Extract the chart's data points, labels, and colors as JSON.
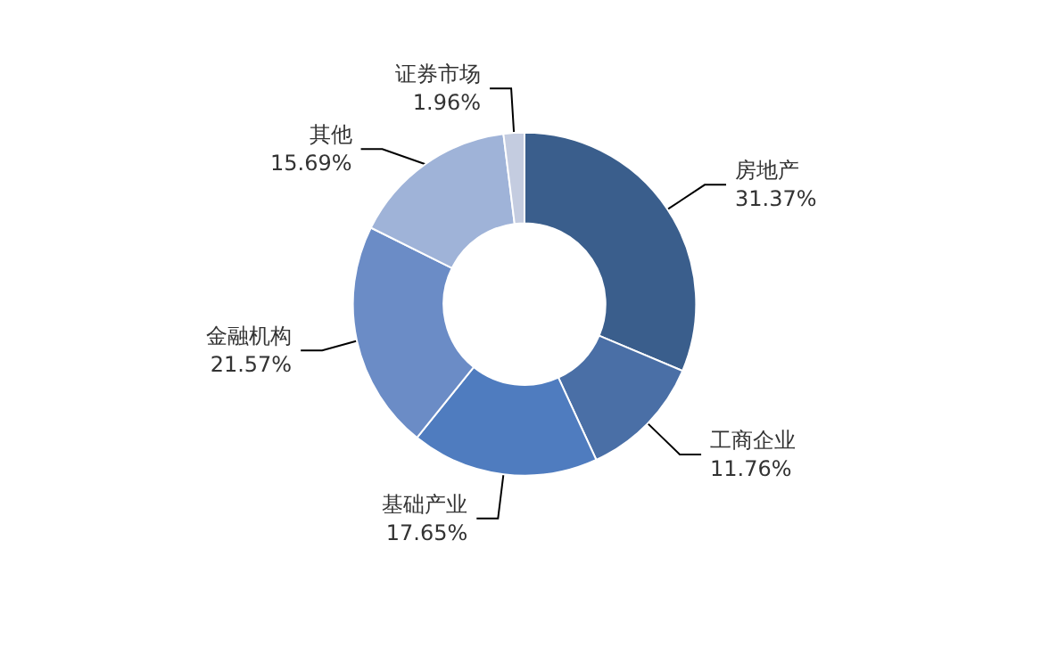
{
  "chart_data": {
    "type": "donut",
    "categories": [
      "房地产",
      "工商企业",
      "基础产业",
      "金融机构",
      "其他",
      "证券市场"
    ],
    "values": [
      31.37,
      11.76,
      17.65,
      21.57,
      15.69,
      1.96
    ],
    "value_labels": [
      "31.37%",
      "11.76%",
      "17.65%",
      "21.57%",
      "15.69%",
      "1.96%"
    ],
    "colors": [
      "#3a5e8c",
      "#4a6fa6",
      "#4f7cbf",
      "#6b8cc6",
      "#9fb3d8",
      "#c4cce0"
    ],
    "legend": false
  }
}
